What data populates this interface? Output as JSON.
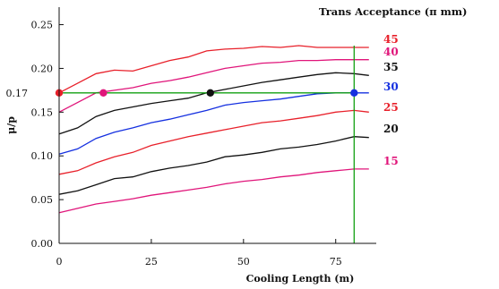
{
  "chart_data": {
    "type": "line",
    "title": "",
    "legend_title": "Trans Acceptance (π  mm)",
    "xlabel": "Cooling Length   (m)",
    "ylabel": "μ/p",
    "xlim": [
      0,
      86
    ],
    "ylim": [
      0,
      0.27
    ],
    "x_ticks": [
      "0",
      "25",
      "50",
      "75"
    ],
    "x_tick_values": [
      0,
      25,
      50,
      75
    ],
    "y_ticks": [
      "0.00",
      "0.05",
      "0.10",
      "0.15",
      "0.20",
      "0.25"
    ],
    "y_tick_values": [
      0,
      0.05,
      0.1,
      0.15,
      0.2,
      0.25
    ],
    "grid": false,
    "series": [
      {
        "name": "45",
        "color": "#e8202a",
        "x": [
          0,
          5,
          10,
          15,
          20,
          25,
          30,
          35,
          40,
          45,
          50,
          55,
          60,
          65,
          70,
          75,
          80,
          84
        ],
        "y": [
          0.172,
          0.183,
          0.194,
          0.198,
          0.197,
          0.203,
          0.209,
          0.213,
          0.22,
          0.222,
          0.223,
          0.225,
          0.224,
          0.226,
          0.224,
          0.224,
          0.224,
          0.224
        ]
      },
      {
        "name": "40",
        "color": "#e0157a",
        "x": [
          0,
          5,
          10,
          15,
          20,
          25,
          30,
          35,
          40,
          45,
          50,
          55,
          60,
          65,
          70,
          75,
          80,
          84
        ],
        "y": [
          0.15,
          0.161,
          0.172,
          0.175,
          0.178,
          0.183,
          0.186,
          0.19,
          0.195,
          0.2,
          0.203,
          0.206,
          0.207,
          0.209,
          0.209,
          0.21,
          0.21,
          0.21
        ]
      },
      {
        "name": "35",
        "color": "#111111",
        "x": [
          0,
          5,
          10,
          15,
          20,
          25,
          30,
          35,
          40,
          45,
          50,
          55,
          60,
          65,
          70,
          75,
          80,
          84
        ],
        "y": [
          0.125,
          0.132,
          0.145,
          0.152,
          0.156,
          0.16,
          0.163,
          0.166,
          0.172,
          0.176,
          0.18,
          0.184,
          0.187,
          0.19,
          0.193,
          0.195,
          0.194,
          0.192
        ]
      },
      {
        "name": "30",
        "color": "#1530e0",
        "x": [
          0,
          5,
          10,
          15,
          20,
          25,
          30,
          35,
          40,
          45,
          50,
          55,
          60,
          65,
          70,
          75,
          80,
          84
        ],
        "y": [
          0.102,
          0.108,
          0.12,
          0.127,
          0.132,
          0.138,
          0.142,
          0.147,
          0.152,
          0.158,
          0.161,
          0.163,
          0.165,
          0.168,
          0.171,
          0.172,
          0.172,
          0.172
        ]
      },
      {
        "name": "25",
        "color": "#e8202a",
        "x": [
          0,
          5,
          10,
          15,
          20,
          25,
          30,
          35,
          40,
          45,
          50,
          55,
          60,
          65,
          70,
          75,
          80,
          84
        ],
        "y": [
          0.079,
          0.083,
          0.092,
          0.099,
          0.104,
          0.112,
          0.117,
          0.122,
          0.126,
          0.13,
          0.134,
          0.138,
          0.14,
          0.143,
          0.146,
          0.15,
          0.152,
          0.15
        ]
      },
      {
        "name": "20",
        "color": "#111111",
        "x": [
          0,
          5,
          10,
          15,
          20,
          25,
          30,
          35,
          40,
          45,
          50,
          55,
          60,
          65,
          70,
          75,
          80,
          84
        ],
        "y": [
          0.056,
          0.06,
          0.067,
          0.074,
          0.076,
          0.082,
          0.086,
          0.089,
          0.093,
          0.099,
          0.101,
          0.104,
          0.108,
          0.11,
          0.113,
          0.117,
          0.122,
          0.121
        ]
      },
      {
        "name": "15",
        "color": "#e0157a",
        "x": [
          0,
          5,
          10,
          15,
          20,
          25,
          30,
          35,
          40,
          45,
          50,
          55,
          60,
          65,
          70,
          75,
          80,
          84
        ],
        "y": [
          0.035,
          0.04,
          0.045,
          0.048,
          0.051,
          0.055,
          0.058,
          0.061,
          0.064,
          0.068,
          0.071,
          0.073,
          0.076,
          0.078,
          0.081,
          0.083,
          0.085,
          0.085
        ]
      }
    ],
    "reference_lines": {
      "horizontal": {
        "y": 0.172,
        "label": "0.17",
        "label_color": "#e8202a",
        "color": "#13a013"
      },
      "vertical": {
        "x": 80,
        "color": "#13a013"
      }
    },
    "markers": [
      {
        "x": 0,
        "y": 0.172,
        "color": "#e8202a"
      },
      {
        "x": 12,
        "y": 0.172,
        "color": "#e0157a"
      },
      {
        "x": 41,
        "y": 0.172,
        "color": "#111111"
      },
      {
        "x": 80,
        "y": 0.172,
        "color": "#1530e0"
      }
    ]
  }
}
